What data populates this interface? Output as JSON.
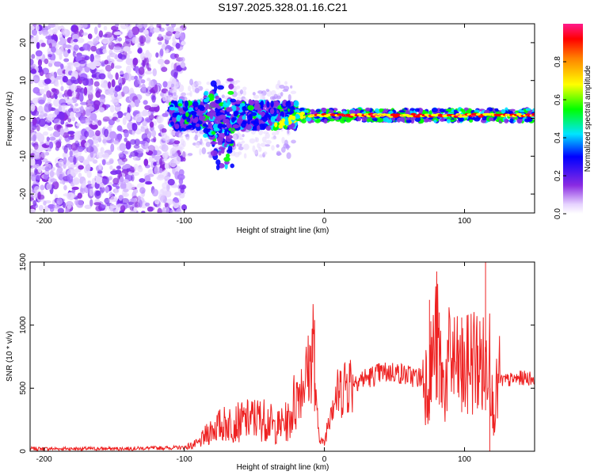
{
  "page_title": "S197.2025.328.01.16.C21",
  "chart_data": [
    {
      "type": "heatmap",
      "title": "S197.2025.328.01.16.C21",
      "xlabel": "Height of straight line (km)",
      "ylabel": "Frequency (Hz)",
      "xlim": [
        -210,
        150
      ],
      "ylim": [
        -25,
        25
      ],
      "x_ticks": [
        -200,
        -100,
        0,
        100
      ],
      "x_tick_labels": [
        "-200",
        "-100",
        "0",
        "100"
      ],
      "y_ticks": [
        -20,
        -10,
        0,
        10,
        20
      ],
      "y_tick_labels": [
        "-20",
        "-10",
        "0",
        "10",
        "20"
      ],
      "noise_region_x": [
        -210,
        -100
      ],
      "signal_start_x": -110,
      "converged_from_x": -20,
      "signal_frequency_hz": 0.8,
      "colorbar": {
        "label": "Normalized spectral amplitude",
        "range": [
          0,
          1
        ],
        "ticks": [
          0,
          0.2,
          0.4,
          0.6,
          0.8
        ],
        "tick_labels": [
          "0.0",
          "0.2",
          "0.4",
          "0.6",
          "0.8"
        ],
        "colormap": "rainbow"
      },
      "colors": {
        "low": "#e8d8ff",
        "purple": "#8a2be2",
        "blue": "#0000ff",
        "cyan": "#00e5ff",
        "green": "#00ff00",
        "yellow": "#ffff00",
        "red": "#ff0000",
        "magenta": "#ff1a8c"
      }
    },
    {
      "type": "line",
      "xlabel": "Height of straight line (km)",
      "ylabel": "SNR (10 * v/v)",
      "xlim": [
        -210,
        150
      ],
      "ylim": [
        0,
        1500
      ],
      "x_ticks": [
        -200,
        -100,
        0,
        100
      ],
      "x_tick_labels": [
        "-200",
        "-100",
        "0",
        "100"
      ],
      "y_ticks": [
        0,
        500,
        1000,
        1500
      ],
      "y_tick_labels": [
        "0",
        "500",
        "1000",
        "1500"
      ],
      "line_color": "#ee2222",
      "series": [
        {
          "name": "SNR",
          "x": [
            -210,
            -180,
            -150,
            -120,
            -100,
            -90,
            -80,
            -70,
            -60,
            -50,
            -40,
            -35,
            -30,
            -25,
            -20,
            -15,
            -13,
            -10,
            -8,
            -6,
            -4,
            -2,
            0,
            5,
            10,
            15,
            20,
            30,
            40,
            50,
            60,
            70,
            75,
            80,
            85,
            90,
            95,
            100,
            105,
            110,
            115,
            118,
            120,
            125,
            130,
            140,
            150
          ],
          "y": [
            20,
            20,
            20,
            25,
            30,
            60,
            180,
            220,
            230,
            260,
            250,
            180,
            220,
            240,
            450,
            560,
            600,
            680,
            920,
            350,
            150,
            80,
            60,
            400,
            450,
            550,
            560,
            580,
            620,
            630,
            600,
            580,
            600,
            900,
            500,
            750,
            650,
            600,
            750,
            700,
            650,
            1000,
            300,
            560,
            560,
            580,
            580
          ]
        }
      ]
    }
  ]
}
